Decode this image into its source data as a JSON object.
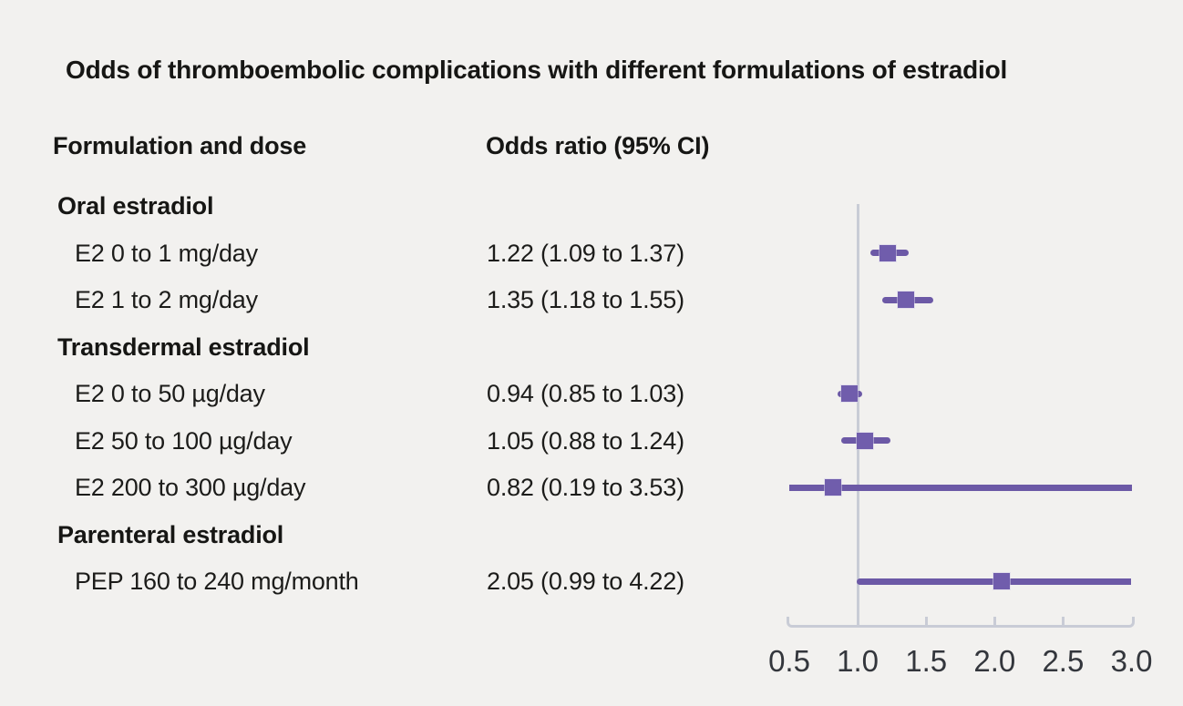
{
  "title": "Odds of thromboembolic complications with different formulations of estradiol",
  "columns": {
    "formulation": "Formulation and dose",
    "odds_ratio": "Odds ratio (95% CI)"
  },
  "colors": {
    "background": "#f2f1ef",
    "text": "#1c1c1a",
    "marker_purple": "#6c59a6",
    "axis_gray": "#c9ccd6"
  },
  "chart_data": {
    "type": "forest",
    "title": "Odds of thromboembolic complications with different formulations of estradiol",
    "xlabel": "",
    "axis": {
      "min": 0.5,
      "max": 3.0,
      "reference_line": 1.0,
      "tick_values": [
        0.5,
        1.0,
        1.5,
        2.0,
        2.5,
        3.0
      ],
      "tick_labels": [
        "0.5",
        "1.0",
        "1.5",
        "2.0",
        "2.5",
        "3.0"
      ]
    },
    "rows": [
      {
        "kind": "group",
        "label": "Oral estradiol"
      },
      {
        "kind": "item",
        "label": "E2 0 to 1 mg/day",
        "value_text": "1.22 (1.09 to 1.37)",
        "estimate": 1.22,
        "ci_low": 1.09,
        "ci_high": 1.37
      },
      {
        "kind": "item",
        "label": "E2 1 to 2 mg/day",
        "value_text": "1.35 (1.18 to 1.55)",
        "estimate": 1.35,
        "ci_low": 1.18,
        "ci_high": 1.55
      },
      {
        "kind": "group",
        "label": "Transdermal estradiol"
      },
      {
        "kind": "item",
        "label": "E2 0 to 50 µg/day",
        "value_text": "0.94 (0.85 to 1.03)",
        "estimate": 0.94,
        "ci_low": 0.85,
        "ci_high": 1.03
      },
      {
        "kind": "item",
        "label": "E2 50 to 100 µg/day",
        "value_text": "1.05 (0.88 to 1.24)",
        "estimate": 1.05,
        "ci_low": 0.88,
        "ci_high": 1.24
      },
      {
        "kind": "item",
        "label": "E2 200 to 300 µg/day",
        "value_text": "0.82 (0.19 to 3.53)",
        "estimate": 0.82,
        "ci_low": 0.19,
        "ci_high": 3.53
      },
      {
        "kind": "group",
        "label": "Parenteral estradiol"
      },
      {
        "kind": "item",
        "label": "PEP 160 to 240 mg/month",
        "value_text": "2.05 (0.99 to 4.22)",
        "estimate": 2.05,
        "ci_low": 0.99,
        "ci_high": 4.22
      }
    ]
  }
}
